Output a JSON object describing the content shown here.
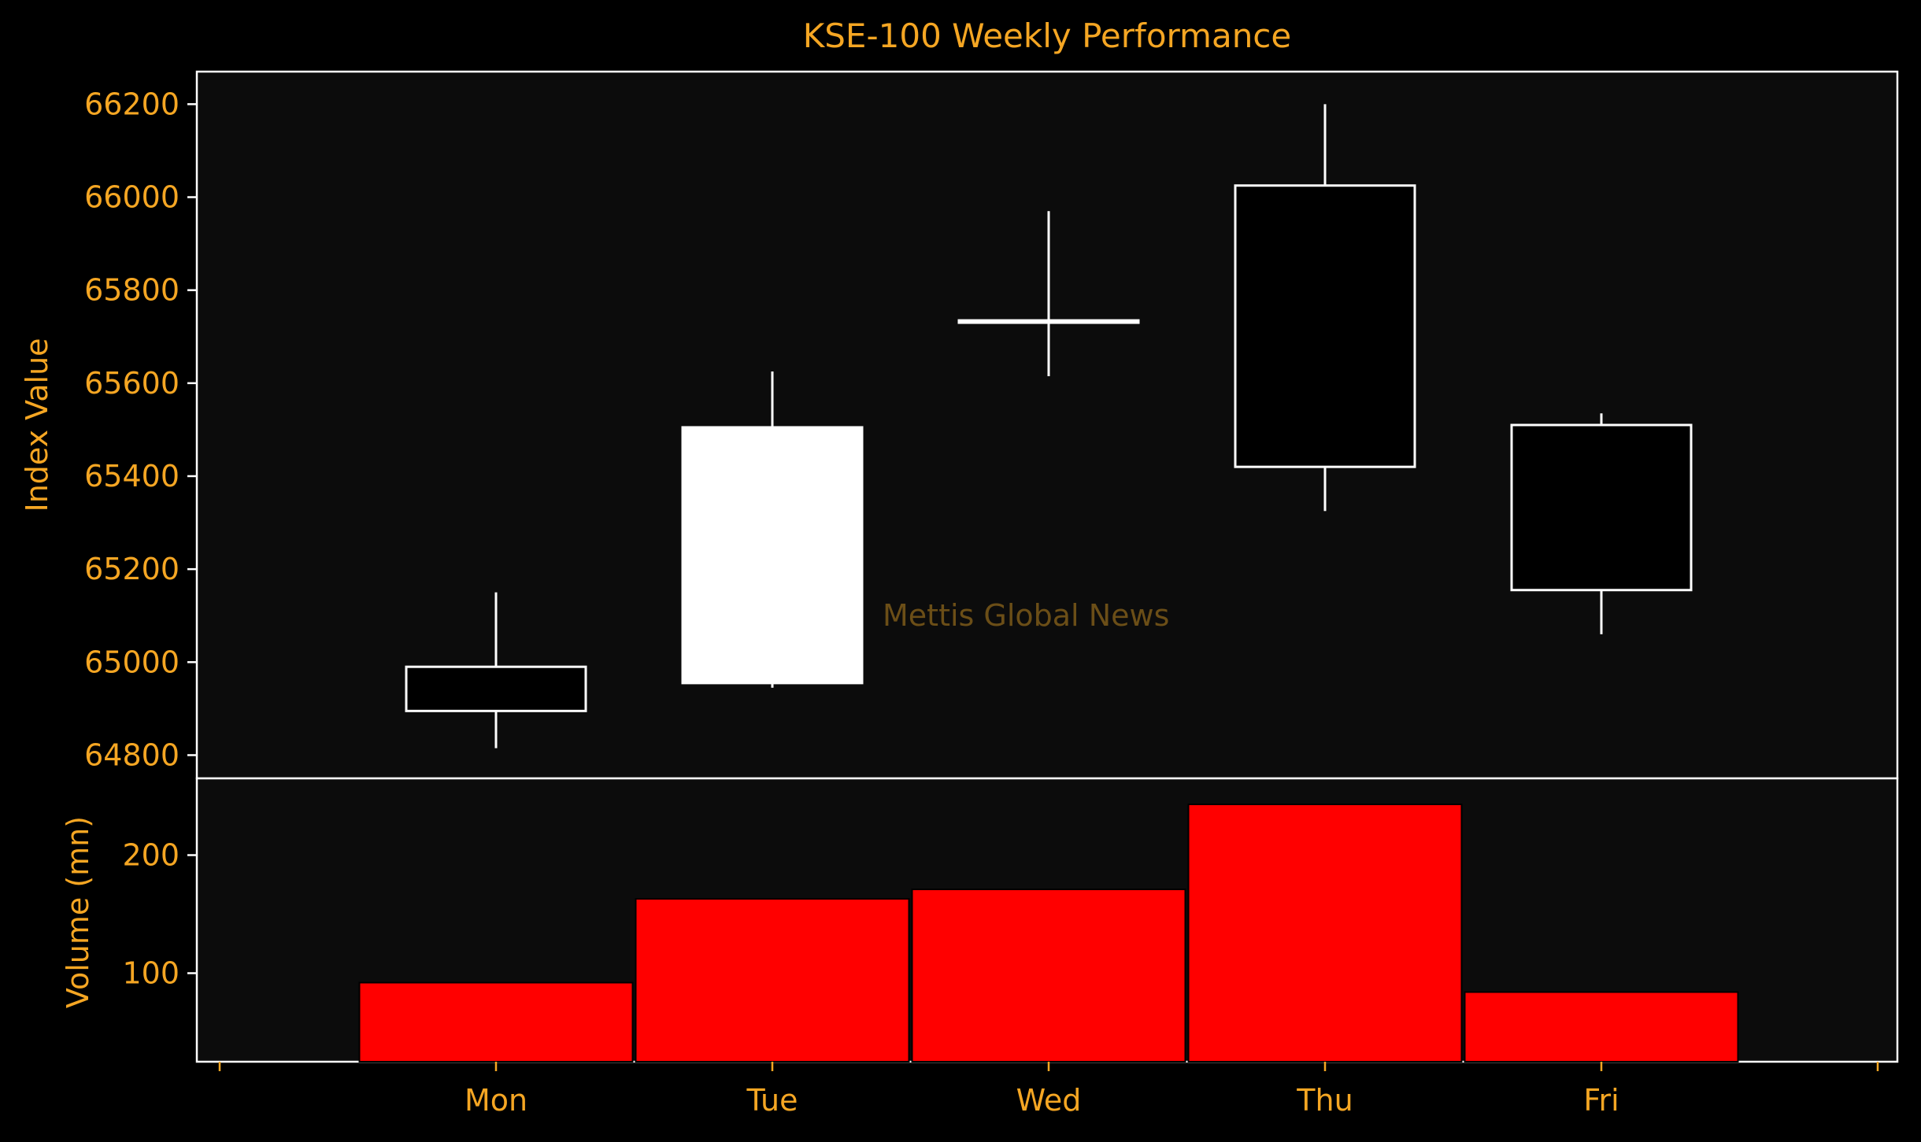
{
  "chart_data": {
    "type": "candlestick",
    "title": "KSE-100 Weekly Performance",
    "categories": [
      "Mon",
      "Tue",
      "Wed",
      "Thu",
      "Fri"
    ],
    "price": {
      "ylabel": "Index Value",
      "ylim": [
        64750,
        66270
      ],
      "yticks": [
        64800,
        65000,
        65200,
        65400,
        65600,
        65800,
        66000,
        66200
      ],
      "candles": [
        {
          "day": "Mon",
          "open": 64990,
          "high": 65150,
          "low": 64815,
          "close": 64895
        },
        {
          "day": "Tue",
          "open": 64955,
          "high": 65625,
          "low": 64945,
          "close": 65505
        },
        {
          "day": "Wed",
          "open": 65735,
          "high": 65970,
          "low": 65615,
          "close": 65730
        },
        {
          "day": "Thu",
          "open": 66025,
          "high": 66200,
          "low": 65325,
          "close": 65420
        },
        {
          "day": "Fri",
          "open": 65510,
          "high": 65535,
          "low": 65060,
          "close": 65155
        }
      ]
    },
    "volume": {
      "ylabel": "Volume (mn)",
      "ylim": [
        25,
        265
      ],
      "yticks": [
        100,
        200
      ],
      "values": [
        92,
        163,
        171,
        243,
        84
      ]
    },
    "annotation": "Mettis Global News",
    "grid": false,
    "legend": "none"
  },
  "colors": {
    "background": "#000000",
    "axes_background": "#0c0c0c",
    "text": "#f5a623",
    "line": "#ffffff",
    "up_candle": "#ffffff",
    "down_candle": "#000000",
    "volume_bar": "#ff0000",
    "watermark": "#6b4e17"
  }
}
